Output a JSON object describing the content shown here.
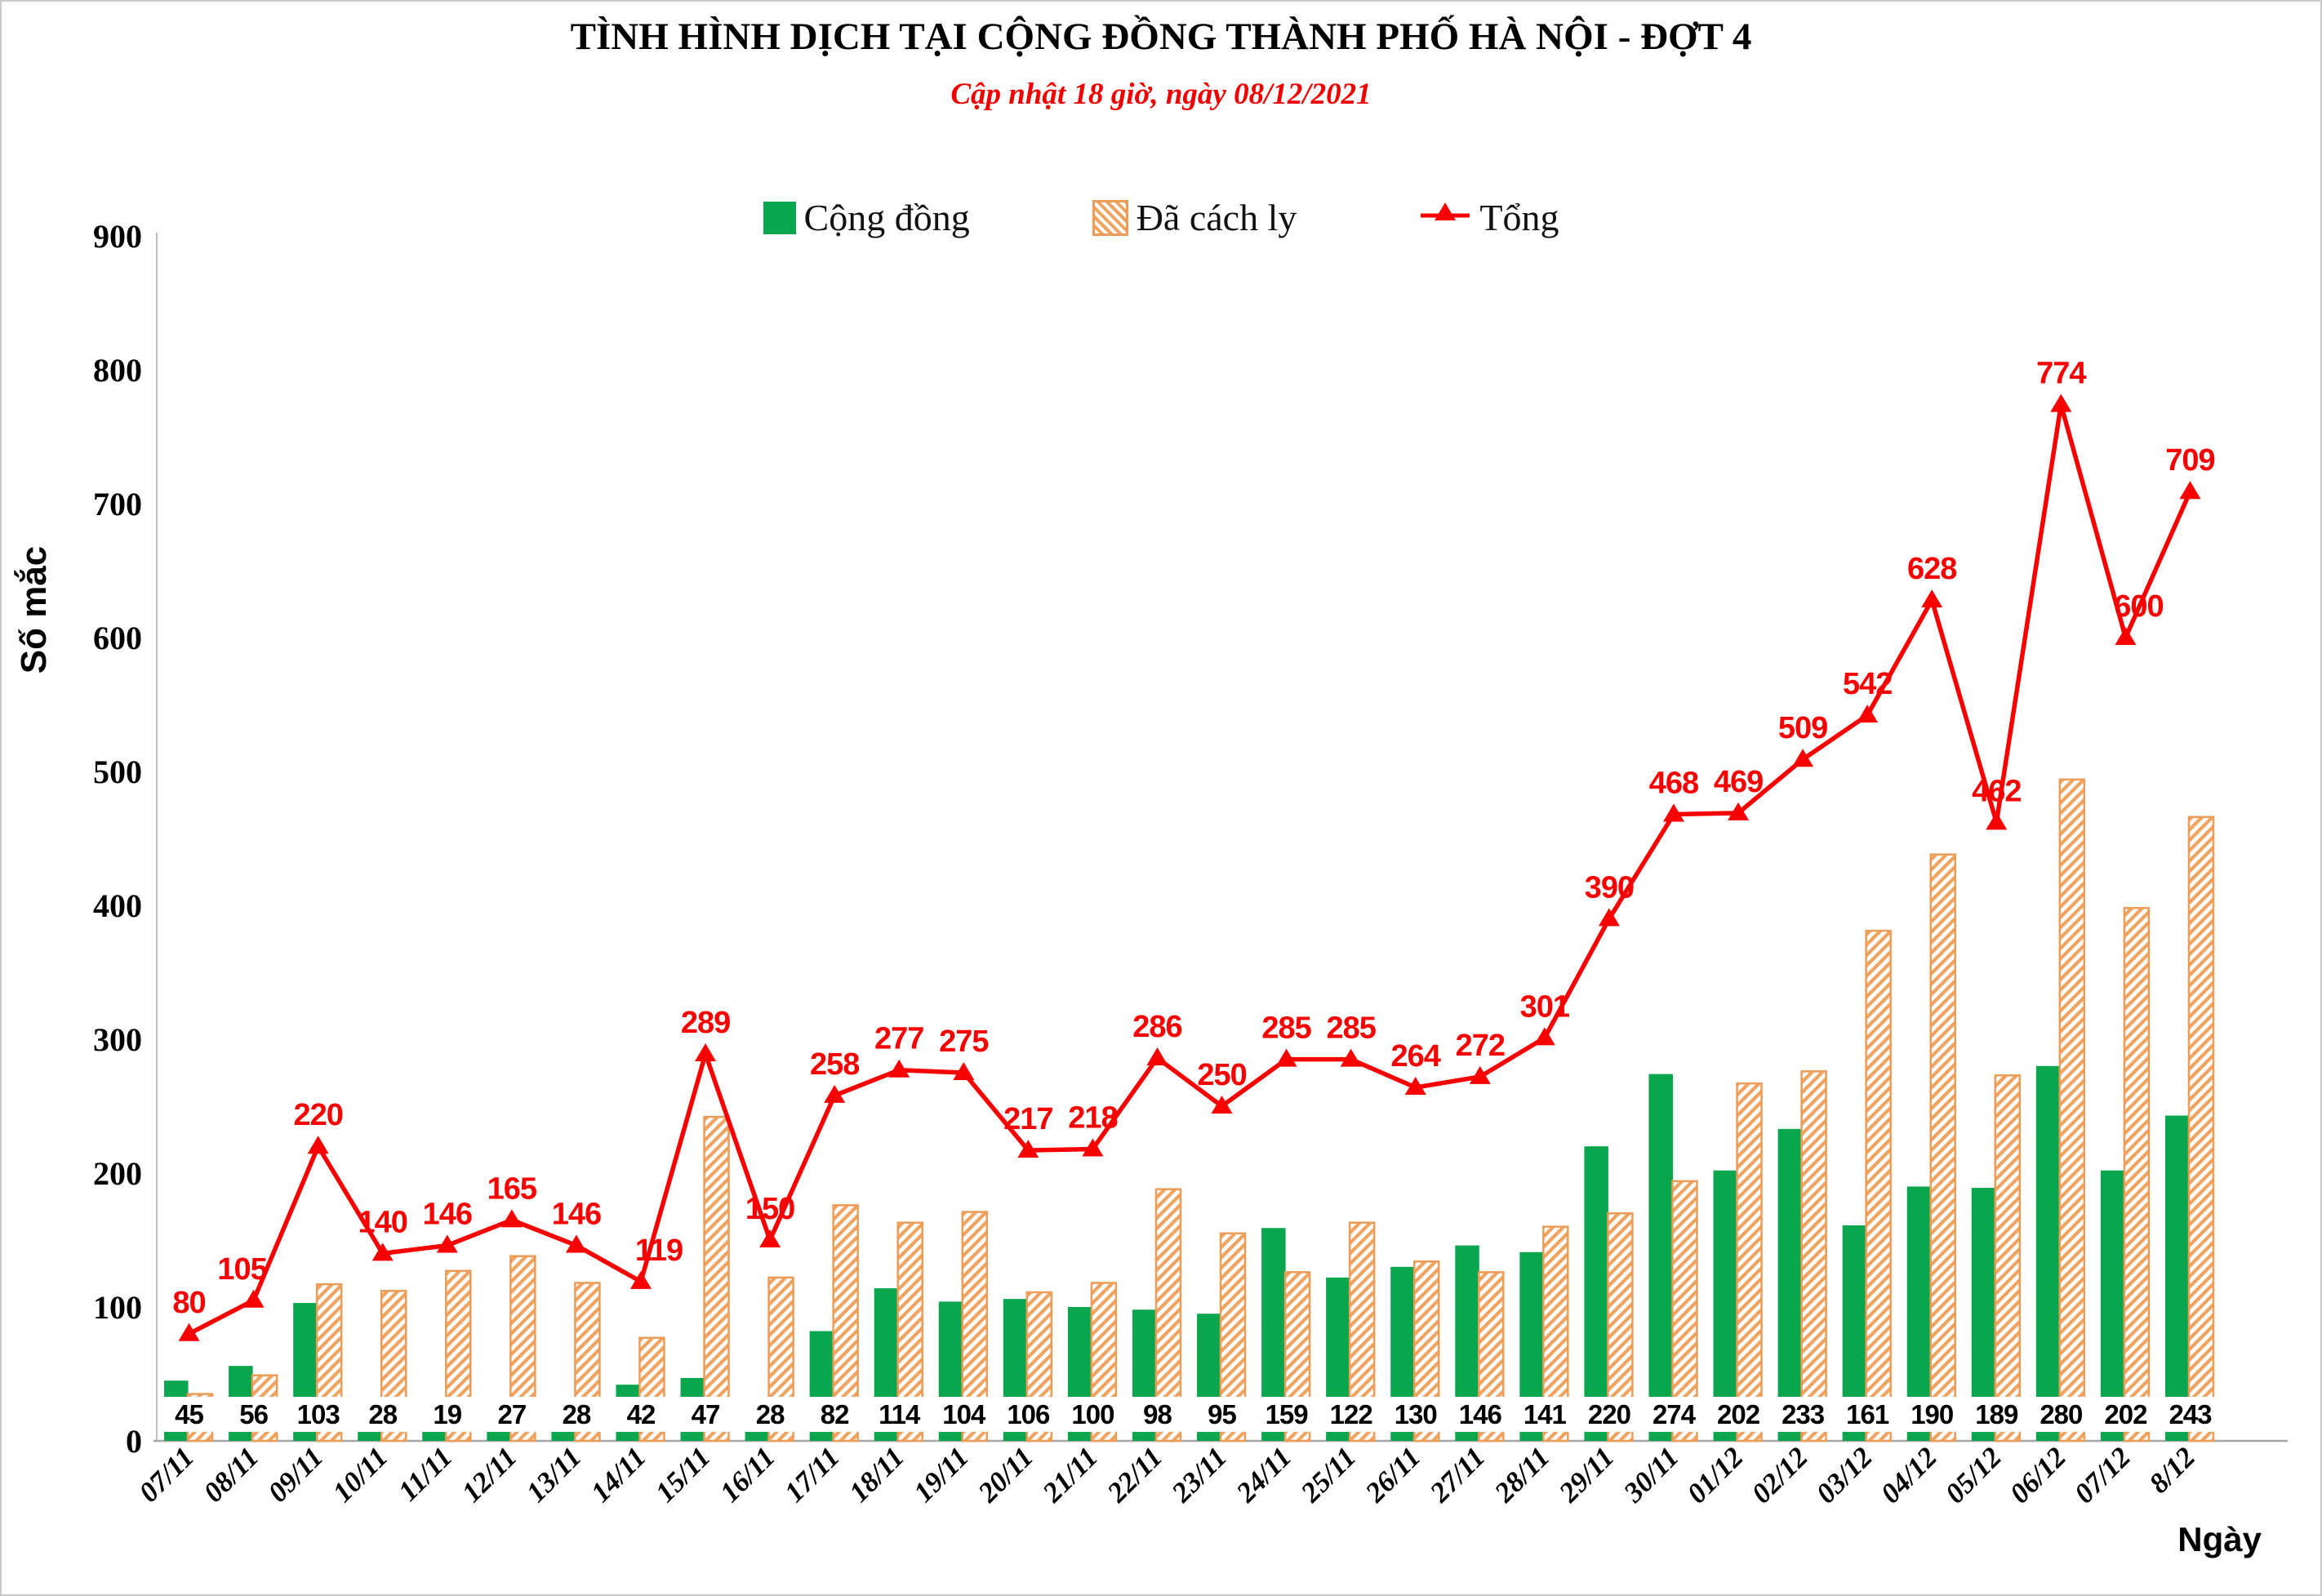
{
  "header": {
    "title": "TÌNH HÌNH DỊCH TẠI CỘNG ĐỒNG THÀNH PHỐ HÀ NỘI - ĐỢT 4",
    "subtitle": "Cập nhật 18 giờ, ngày 08/12/2021"
  },
  "legend": [
    {
      "label": "Cộng đồng",
      "swatch": "green-square",
      "color": "#09a64d"
    },
    {
      "label": "Đã cách ly",
      "swatch": "orange-hatched-square",
      "color": "#ec9c57"
    },
    {
      "label": "Tổng",
      "swatch": "red-line-with-triangle-marker",
      "color": "#f80000"
    }
  ],
  "chart_data": {
    "type": "bar",
    "subtype": "grouped-bars-with-line-overlay",
    "title": "TÌNH HÌNH DỊCH TẠI CỘNG ĐỒNG THÀNH PHỐ HÀ NỘI - ĐỢT 4",
    "subtitle": "Cập nhật 18 giờ, ngày 08/12/2021",
    "xlabel": "Ngày",
    "ylabel": "Số mắc",
    "ylim": [
      0,
      900
    ],
    "yticks": [
      0,
      100,
      200,
      300,
      400,
      500,
      600,
      700,
      800,
      900
    ],
    "grid": false,
    "legend_position": "top",
    "categories": [
      "07/11",
      "08/11",
      "09/11",
      "10/11",
      "11/11",
      "12/11",
      "13/11",
      "14/11",
      "15/11",
      "16/11",
      "17/11",
      "18/11",
      "19/11",
      "20/11",
      "21/11",
      "22/11",
      "23/11",
      "24/11",
      "25/11",
      "26/11",
      "27/11",
      "28/11",
      "29/11",
      "30/11",
      "01/12",
      "02/12",
      "03/12",
      "04/12",
      "05/12",
      "06/12",
      "07/12",
      "8/12"
    ],
    "series": [
      {
        "name": "Cộng đồng",
        "type": "bar",
        "color": "#09a64d",
        "data_labels": true,
        "values": [
          45,
          56,
          103,
          28,
          19,
          27,
          28,
          42,
          47,
          28,
          82,
          114,
          104,
          106,
          100,
          98,
          95,
          159,
          122,
          130,
          146,
          141,
          220,
          274,
          202,
          233,
          161,
          190,
          189,
          280,
          202,
          243
        ]
      },
      {
        "name": "Đã cách ly",
        "type": "bar",
        "style": "diagonal-hatch",
        "color": "#ec9c57",
        "data_labels": false,
        "values": [
          35,
          49,
          117,
          112,
          127,
          138,
          118,
          77,
          242,
          122,
          176,
          163,
          171,
          111,
          118,
          188,
          155,
          126,
          163,
          134,
          126,
          160,
          170,
          194,
          267,
          276,
          381,
          438,
          273,
          494,
          398,
          466
        ]
      },
      {
        "name": "Tổng",
        "type": "line",
        "marker": "triangle-up",
        "color": "#f80000",
        "data_labels": true,
        "values": [
          80,
          105,
          220,
          140,
          146,
          165,
          146,
          119,
          289,
          150,
          258,
          277,
          275,
          217,
          218,
          286,
          250,
          285,
          285,
          264,
          272,
          301,
          390,
          468,
          469,
          509,
          542,
          628,
          462,
          774,
          600,
          709
        ]
      }
    ]
  }
}
